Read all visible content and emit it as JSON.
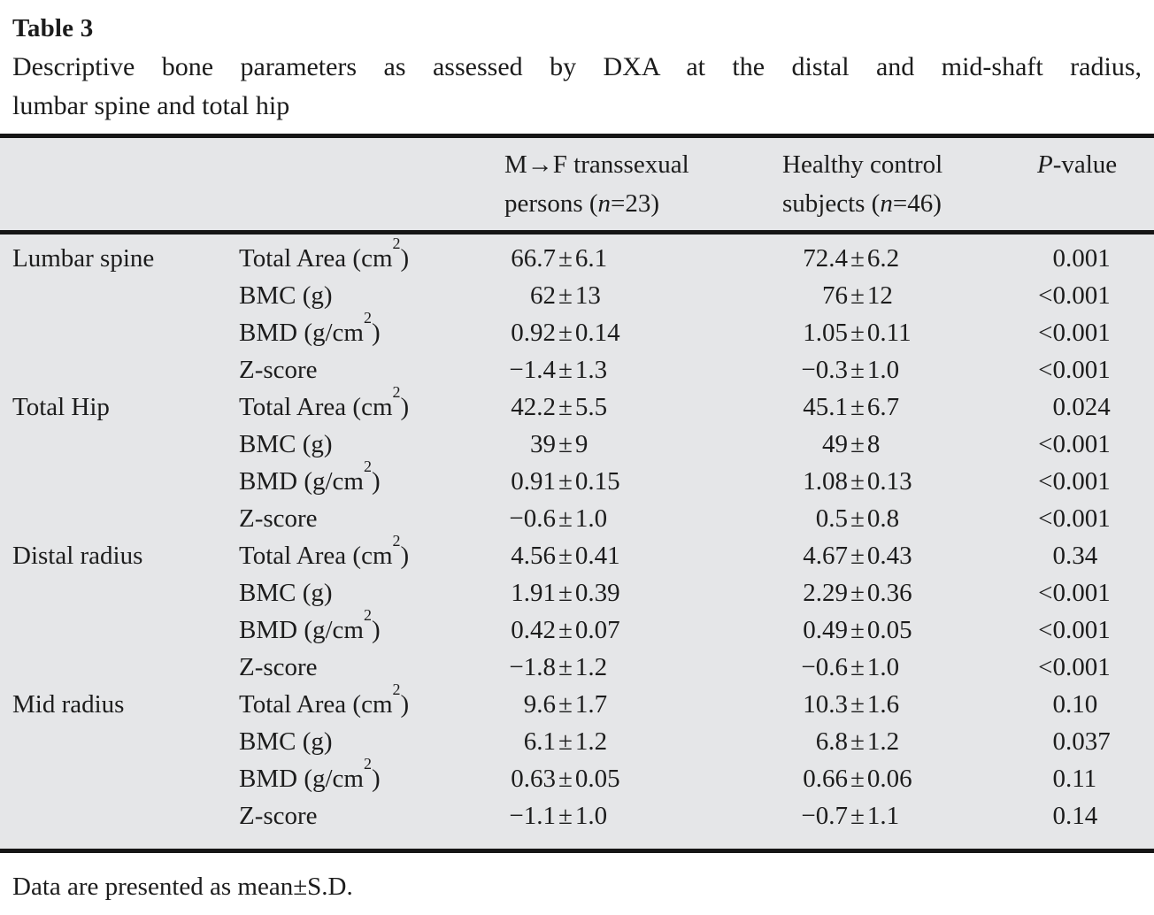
{
  "title": "Table 3",
  "caption_line1": "Descriptive bone parameters as assessed by DXA at the distal and mid-shaft radius,",
  "caption_line2": "lumbar spine and total hip",
  "footnote": "Data are presented as mean±S.D.",
  "colors": {
    "table_background": "#e5e6e8",
    "rule": "#151515",
    "text": "#1c1c1c"
  },
  "table": {
    "col_headers": [
      {
        "line1": "M→F transsexual",
        "line2": "persons (n=23)"
      },
      {
        "line1": "Healthy control",
        "line2": "subjects (n=46)"
      },
      {
        "line1": "P-value",
        "line2": ""
      }
    ],
    "groups": [
      {
        "site": "Lumbar spine",
        "rows": [
          {
            "param": "Total Area (cm²)",
            "mf": "66.7±6.1",
            "hc": "72.4±6.2",
            "p": "0.001"
          },
          {
            "param": "BMC (g)",
            "mf": "62±13",
            "hc": "76±12",
            "p": "<0.001"
          },
          {
            "param": "BMD (g/cm²)",
            "mf": "0.92±0.14",
            "hc": "1.05±0.11",
            "p": "<0.001"
          },
          {
            "param": "Z-score",
            "mf": "−1.4±1.3",
            "hc": "−0.3±1.0",
            "p": "<0.001"
          }
        ]
      },
      {
        "site": "Total Hip",
        "rows": [
          {
            "param": "Total Area (cm²)",
            "mf": "42.2±5.5",
            "hc": "45.1±6.7",
            "p": "0.024"
          },
          {
            "param": "BMC (g)",
            "mf": "39±9",
            "hc": "49±8",
            "p": "<0.001"
          },
          {
            "param": "BMD (g/cm²)",
            "mf": "0.91±0.15",
            "hc": "1.08±0.13",
            "p": "<0.001"
          },
          {
            "param": "Z-score",
            "mf": "−0.6±1.0",
            "hc": "0.5±0.8",
            "p": "<0.001"
          }
        ]
      },
      {
        "site": "Distal radius",
        "rows": [
          {
            "param": "Total Area (cm²)",
            "mf": "4.56±0.41",
            "hc": "4.67±0.43",
            "p": "0.34"
          },
          {
            "param": "BMC (g)",
            "mf": "1.91±0.39",
            "hc": "2.29±0.36",
            "p": "<0.001"
          },
          {
            "param": "BMD (g/cm²)",
            "mf": "0.42±0.07",
            "hc": "0.49±0.05",
            "p": "<0.001"
          },
          {
            "param": "Z-score",
            "mf": "−1.8±1.2",
            "hc": "−0.6±1.0",
            "p": "<0.001"
          }
        ]
      },
      {
        "site": "Mid radius",
        "rows": [
          {
            "param": "Total Area (cm²)",
            "mf": "9.6±1.7",
            "hc": "10.3±1.6",
            "p": "0.10"
          },
          {
            "param": "BMC (g)",
            "mf": "6.1±1.2",
            "hc": "6.8±1.2",
            "p": "0.037"
          },
          {
            "param": "BMD (g/cm²)",
            "mf": "0.63±0.05",
            "hc": "0.66±0.06",
            "p": "0.11"
          },
          {
            "param": "Z-score",
            "mf": "−1.1±1.0",
            "hc": "−0.7±1.1",
            "p": "0.14"
          }
        ]
      }
    ]
  }
}
